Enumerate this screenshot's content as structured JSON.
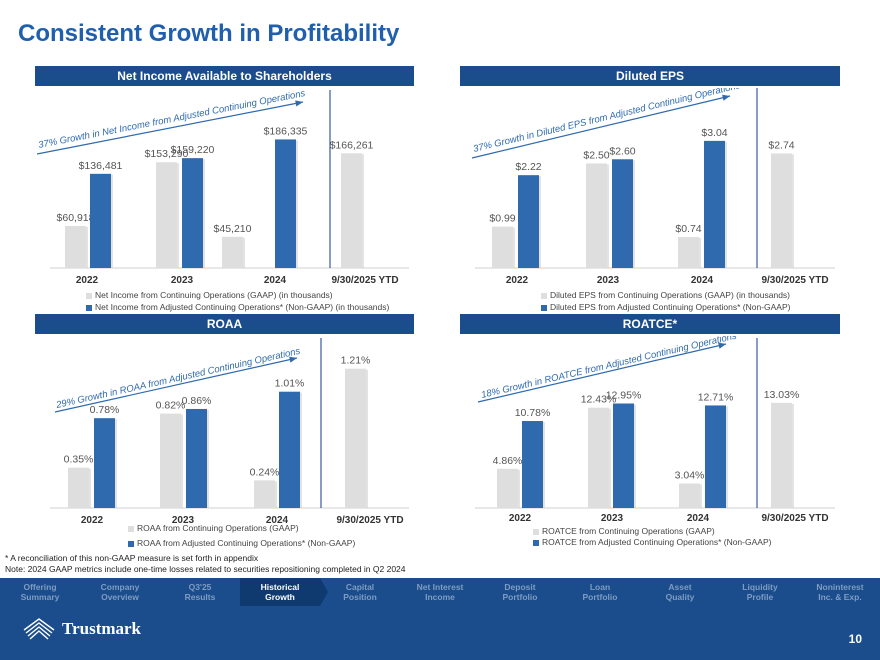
{
  "page": {
    "title": "Consistent Growth in Profitability",
    "page_number": "10",
    "footnote": "* A reconciliation of this non-GAAP measure is set forth in appendix",
    "note": "Note: 2024 GAAP metrics include one-time losses related to securities repositioning completed in Q2 2024",
    "brand": "Trustmark"
  },
  "colors": {
    "gaap": "#dedede",
    "adjusted": "#2f6aae",
    "header": "#1b4d8c",
    "title": "#1f5fae"
  },
  "nav": [
    {
      "line1": "Offering",
      "line2": "Summary",
      "active": false
    },
    {
      "line1": "Company",
      "line2": "Overview",
      "active": false
    },
    {
      "line1": "Q3'25",
      "line2": "Results",
      "active": false
    },
    {
      "line1": "Historical",
      "line2": "Growth",
      "active": true
    },
    {
      "line1": "Capital",
      "line2": "Position",
      "active": false
    },
    {
      "line1": "Net Interest",
      "line2": "Income",
      "active": false
    },
    {
      "line1": "Deposit",
      "line2": "Portfolio",
      "active": false
    },
    {
      "line1": "Loan",
      "line2": "Portfolio",
      "active": false
    },
    {
      "line1": "Asset",
      "line2": "Quality",
      "active": false
    },
    {
      "line1": "Liquidity",
      "line2": "Profile",
      "active": false
    },
    {
      "line1": "Noninterest",
      "line2": "Inc. & Exp.",
      "active": false
    }
  ],
  "chart_data": [
    {
      "type": "bar",
      "title": "Net Income Available to Shareholders",
      "categories": [
        "2022",
        "2023",
        "2024",
        "9/30/2025 YTD"
      ],
      "series": [
        {
          "name": "Net Income from Continuing Operations (GAAP) (in thousands)",
          "values": [
            60918,
            153290,
            45210,
            166261
          ],
          "labels": [
            "$60,918",
            "$153,290",
            "$45,210",
            "$166,261"
          ]
        },
        {
          "name": "Net Income from Adjusted Continuing Operations* (Non-GAAP) (in thousands)",
          "values": [
            136481,
            159220,
            186335,
            null
          ],
          "labels": [
            "$136,481",
            "$159,220",
            "$186,335",
            null
          ]
        }
      ],
      "ylim": [
        0,
        200000
      ],
      "annotation": "37% Growth in Net Income from Adjusted Continuing Operations"
    },
    {
      "type": "bar",
      "title": "Diluted EPS",
      "categories": [
        "2022",
        "2023",
        "2024",
        "9/30/2025 YTD"
      ],
      "series": [
        {
          "name": "Diluted EPS from Continuing Operations (GAAP) (in thousands)",
          "values": [
            0.99,
            2.5,
            0.74,
            2.74
          ],
          "labels": [
            "$0.99",
            "$2.50",
            "$0.74",
            "$2.74"
          ]
        },
        {
          "name": "Diluted EPS from Adjusted Continuing Operations* (Non-GAAP)",
          "values": [
            2.22,
            2.6,
            3.04,
            null
          ],
          "labels": [
            "$2.22",
            "$2.60",
            "$3.04",
            null
          ]
        }
      ],
      "ylim": [
        0,
        3.3
      ],
      "annotation": "37% Growth in Diluted EPS from Adjusted Continuing Operations"
    },
    {
      "type": "bar",
      "title": "ROAA",
      "categories": [
        "2022",
        "2023",
        "2024",
        "9/30/2025 YTD"
      ],
      "series": [
        {
          "name": "ROAA from Continuing Operations (GAAP)",
          "values": [
            0.35,
            0.82,
            0.24,
            1.21
          ],
          "labels": [
            "0.35%",
            "0.82%",
            "0.24%",
            "1.21%"
          ]
        },
        {
          "name": "ROAA from Adjusted Continuing Operations* (Non-GAAP)",
          "values": [
            0.78,
            0.86,
            1.01,
            null
          ],
          "labels": [
            "0.78%",
            "0.86%",
            "1.01%",
            null
          ]
        }
      ],
      "ylim": [
        0,
        1.32
      ],
      "annotation": "29% Growth in ROAA from Adjusted Continuing Operations"
    },
    {
      "type": "bar",
      "title": "ROATCE*",
      "categories": [
        "2022",
        "2023",
        "2024",
        "9/30/2025 YTD"
      ],
      "series": [
        {
          "name": "ROATCE from Continuing Operations (GAAP)",
          "values": [
            4.86,
            12.43,
            3.04,
            13.03
          ],
          "labels": [
            "4.86%",
            "12.43%",
            "3.04%",
            "13.03%"
          ]
        },
        {
          "name": "ROATCE from Adjusted Continuing Operations* (Non-GAAP)",
          "values": [
            10.78,
            12.95,
            12.71,
            null
          ],
          "labels": [
            "10.78%",
            "12.95%",
            "12.71%",
            null
          ]
        }
      ],
      "ylim": [
        0,
        14.5
      ],
      "annotation": "18% Growth in ROATCE from Adjusted Continuing Operations"
    }
  ]
}
